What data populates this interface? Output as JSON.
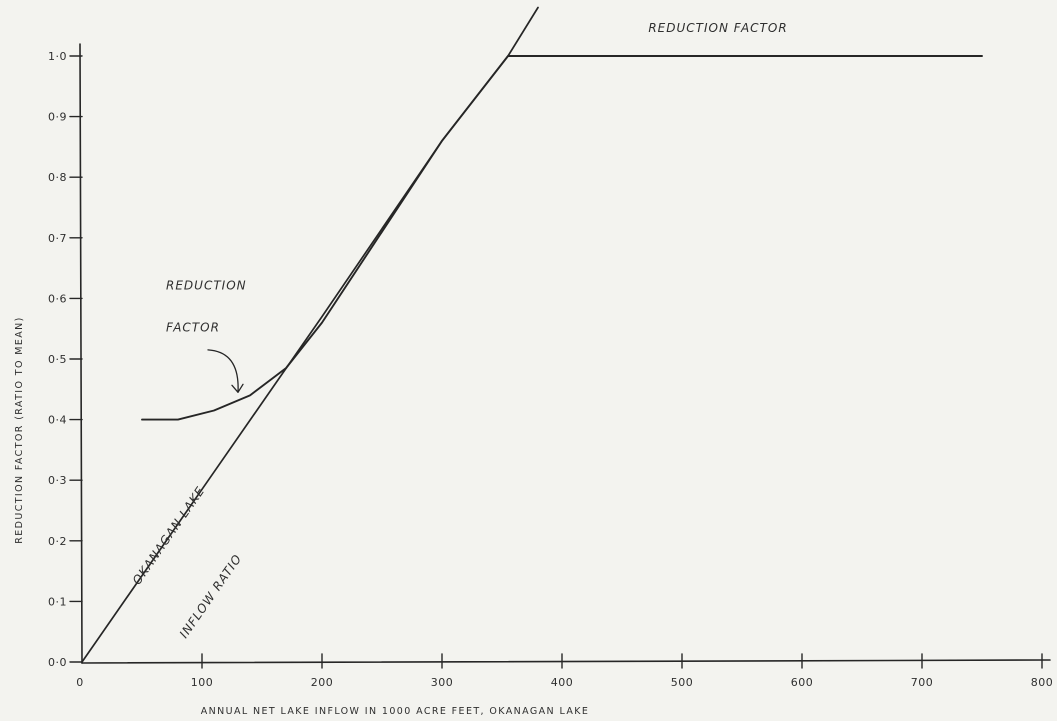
{
  "chart_data": {
    "type": "line",
    "title": "",
    "xlabel": "ANNUAL NET LAKE INFLOW IN 1000 ACRE FEET, OKANAGAN LAKE",
    "ylabel": "REDUCTION FACTOR (RATIO TO MEAN)",
    "xlim": [
      0,
      800
    ],
    "ylim": [
      0,
      1.0
    ],
    "x_ticks": [
      "0",
      "100",
      "200",
      "300",
      "400",
      "500",
      "600",
      "700",
      "800"
    ],
    "y_ticks": [
      "0·0",
      "0·1",
      "0·2",
      "0·3",
      "0·4",
      "0·5",
      "0·6",
      "0·7",
      "0·8",
      "0·9",
      "1·0"
    ],
    "grid": false,
    "series": [
      {
        "name": "OKANAGAN LAKE INFLOW RATIO",
        "x": [
          0,
          100,
          200,
          300,
          355,
          380
        ],
        "y": [
          0,
          0.285,
          0.57,
          0.86,
          1.0,
          1.08
        ]
      },
      {
        "name": "REDUCTION FACTOR",
        "x": [
          50,
          80,
          110,
          140,
          170,
          200,
          250,
          300,
          355,
          500,
          750
        ],
        "y": [
          0.4,
          0.4,
          0.415,
          0.44,
          0.485,
          0.56,
          0.71,
          0.86,
          1.0,
          1.0,
          1.0
        ]
      }
    ],
    "annotations": [
      {
        "text": "REDUCTION FACTOR",
        "x": 530,
        "y": 1.04
      },
      {
        "text": "REDUCTION",
        "x": 70,
        "y": 0.615
      },
      {
        "text": "FACTOR",
        "x": 70,
        "y": 0.545
      },
      {
        "text": "OKANAGAN LAKE",
        "x": 75,
        "y": 0.205
      },
      {
        "text": "INFLOW RATIO",
        "x": 110,
        "y": 0.105
      }
    ]
  }
}
